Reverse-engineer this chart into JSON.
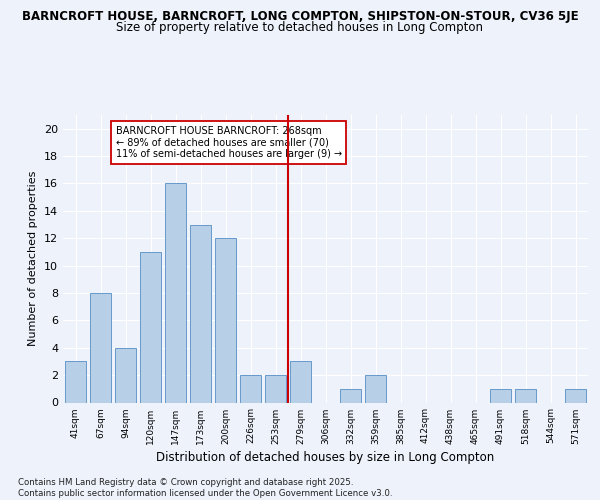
{
  "title_line1": "BARNCROFT HOUSE, BARNCROFT, LONG COMPTON, SHIPSTON-ON-STOUR, CV36 5JE",
  "title_line2": "Size of property relative to detached houses in Long Compton",
  "xlabel": "Distribution of detached houses by size in Long Compton",
  "ylabel": "Number of detached properties",
  "categories": [
    "41sqm",
    "67sqm",
    "94sqm",
    "120sqm",
    "147sqm",
    "173sqm",
    "200sqm",
    "226sqm",
    "253sqm",
    "279sqm",
    "306sqm",
    "332sqm",
    "359sqm",
    "385sqm",
    "412sqm",
    "438sqm",
    "465sqm",
    "491sqm",
    "518sqm",
    "544sqm",
    "571sqm"
  ],
  "values": [
    3,
    8,
    4,
    11,
    16,
    13,
    12,
    2,
    2,
    3,
    0,
    1,
    2,
    0,
    0,
    0,
    0,
    1,
    1,
    0,
    1
  ],
  "bar_color": "#b8cfe8",
  "bar_edge_color": "#6699cc",
  "vline_color": "#cc0000",
  "annotation_text": "BARNCROFT HOUSE BARNCROFT: 268sqm\n← 89% of detached houses are smaller (70)\n11% of semi-detached houses are larger (9) →",
  "annotation_box_color": "#ffffff",
  "annotation_box_edge_color": "#cc0000",
  "ylim": [
    0,
    21
  ],
  "yticks": [
    0,
    2,
    4,
    6,
    8,
    10,
    12,
    14,
    16,
    18,
    20
  ],
  "footer_text": "Contains HM Land Registry data © Crown copyright and database right 2025.\nContains public sector information licensed under the Open Government Licence v3.0.",
  "background_color": "#eef2fb",
  "grid_color": "#ffffff",
  "bar_width": 0.85,
  "vline_pos": 8.5
}
